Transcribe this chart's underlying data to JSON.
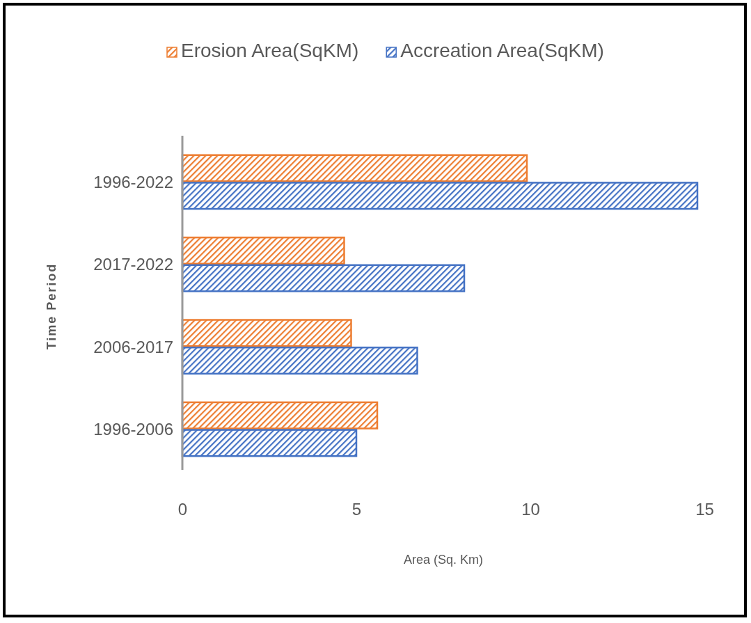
{
  "chart_data": {
    "type": "bar",
    "orientation": "horizontal",
    "xlabel": "Area (Sq. Km)",
    "ylabel": "Time Period",
    "categories": [
      "1996-2022",
      "2017-2022",
      "2006-2017",
      "1996-2006"
    ],
    "series": [
      {
        "name": "Erosion Area(SqKM)",
        "color": "#ed7d31",
        "values": [
          9.9,
          4.65,
          4.85,
          5.6
        ]
      },
      {
        "name": "Accreation Area(SqKM)",
        "color": "#4472c4",
        "values": [
          14.8,
          8.1,
          6.75,
          5.0
        ]
      }
    ],
    "xlim": [
      0,
      15
    ],
    "xticks": [
      0,
      5,
      10,
      15
    ],
    "legend": "top",
    "grid": false
  }
}
